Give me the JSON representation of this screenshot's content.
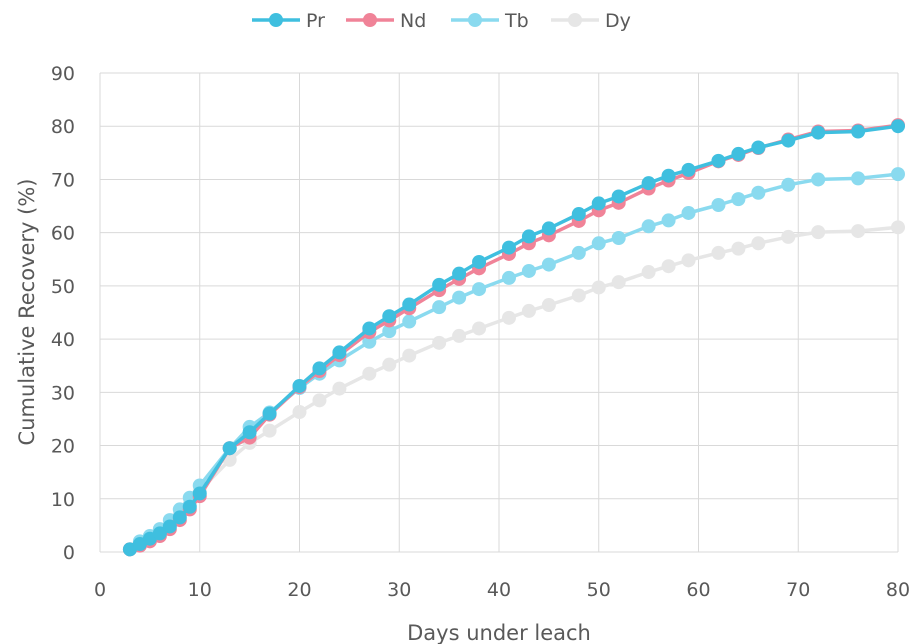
{
  "chart_data": {
    "type": "line",
    "title": "",
    "xlabel": "Days under leach",
    "ylabel": "Cumulative Recovery (%)",
    "xlim": [
      0,
      80
    ],
    "ylim": [
      0,
      90
    ],
    "xticks": [
      0,
      10,
      20,
      30,
      40,
      50,
      60,
      70,
      80
    ],
    "yticks": [
      0,
      10,
      20,
      30,
      40,
      50,
      60,
      70,
      80,
      90
    ],
    "grid": true,
    "legend_position": "top",
    "x": [
      3,
      4,
      5,
      6,
      7,
      8,
      9,
      10,
      13,
      15,
      17,
      20,
      22,
      24,
      27,
      29,
      31,
      34,
      36,
      38,
      41,
      43,
      45,
      48,
      50,
      52,
      55,
      57,
      59,
      62,
      64,
      66,
      69,
      72,
      76,
      80
    ],
    "series": [
      {
        "name": "Pr",
        "color": "#3fbfdf",
        "values": [
          0.5,
          1.5,
          2.5,
          3.5,
          4.8,
          6.5,
          8.5,
          11,
          19.5,
          22.5,
          26,
          31.2,
          34.5,
          37.5,
          42,
          44.3,
          46.5,
          50.2,
          52.3,
          54.5,
          57.2,
          59.3,
          60.8,
          63.5,
          65.5,
          66.8,
          69.3,
          70.7,
          71.8,
          73.5,
          74.8,
          76,
          77.3,
          78.8,
          79,
          80
        ]
      },
      {
        "name": "Nd",
        "color": "#f08398",
        "values": [
          0.5,
          1.2,
          2.0,
          3.0,
          4.3,
          6.0,
          8.0,
          10.5,
          19.5,
          21.5,
          25.8,
          31,
          34,
          37,
          41.3,
          43.5,
          45.8,
          49.2,
          51.3,
          53.3,
          56,
          58,
          59.5,
          62.2,
          64.2,
          65.6,
          68.3,
          69.8,
          71.2,
          73.4,
          74.6,
          75.9,
          77.5,
          79,
          79.2,
          80.2
        ]
      },
      {
        "name": "Tb",
        "color": "#8adaef",
        "values": [
          0.5,
          2.0,
          3.0,
          4.3,
          6.0,
          8.0,
          10.2,
          12.5,
          19.5,
          23.5,
          26.2,
          30.8,
          33.5,
          36,
          39.5,
          41.5,
          43.3,
          46,
          47.8,
          49.4,
          51.5,
          52.8,
          54,
          56.2,
          58,
          59,
          61.2,
          62.3,
          63.7,
          65.2,
          66.3,
          67.5,
          69,
          70,
          70.2,
          71
        ]
      },
      {
        "name": "Dy",
        "color": "#e6e6e6",
        "values": [
          0.5,
          1.5,
          2.5,
          3.5,
          5.0,
          7.0,
          9.0,
          11.5,
          17.3,
          20.5,
          22.8,
          26.3,
          28.5,
          30.7,
          33.5,
          35.2,
          36.9,
          39.3,
          40.6,
          42,
          44,
          45.3,
          46.4,
          48.2,
          49.7,
          50.7,
          52.6,
          53.7,
          54.8,
          56.2,
          57,
          58,
          59.2,
          60.1,
          60.3,
          61
        ]
      }
    ]
  }
}
